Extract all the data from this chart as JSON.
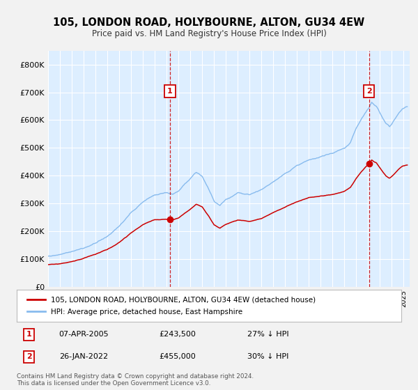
{
  "title": "105, LONDON ROAD, HOLYBOURNE, ALTON, GU34 4EW",
  "subtitle": "Price paid vs. HM Land Registry's House Price Index (HPI)",
  "ylim": [
    0,
    850000
  ],
  "yticks": [
    0,
    100000,
    200000,
    300000,
    400000,
    500000,
    600000,
    700000,
    800000
  ],
  "ytick_labels": [
    "£0",
    "£100K",
    "£200K",
    "£300K",
    "£400K",
    "£500K",
    "£600K",
    "£700K",
    "£800K"
  ],
  "fig_bg_color": "#f0f0f0",
  "plot_bg_color": "#ddeeff",
  "grid_color": "#ffffff",
  "hpi_color": "#88bbee",
  "price_color": "#cc0000",
  "marker1_x": 2005.27,
  "marker1_y": 243500,
  "marker2_x": 2022.07,
  "marker2_y": 455000,
  "marker1_date": "07-APR-2005",
  "marker1_price": "£243,500",
  "marker1_note": "27% ↓ HPI",
  "marker2_date": "26-JAN-2022",
  "marker2_price": "£455,000",
  "marker2_note": "30% ↓ HPI",
  "legend_line1": "105, LONDON ROAD, HOLYBOURNE, ALTON, GU34 4EW (detached house)",
  "legend_line2": "HPI: Average price, detached house, East Hampshire",
  "footnote": "Contains HM Land Registry data © Crown copyright and database right 2024.\nThis data is licensed under the Open Government Licence v3.0.",
  "xmin": 1995.0,
  "xmax": 2025.5
}
